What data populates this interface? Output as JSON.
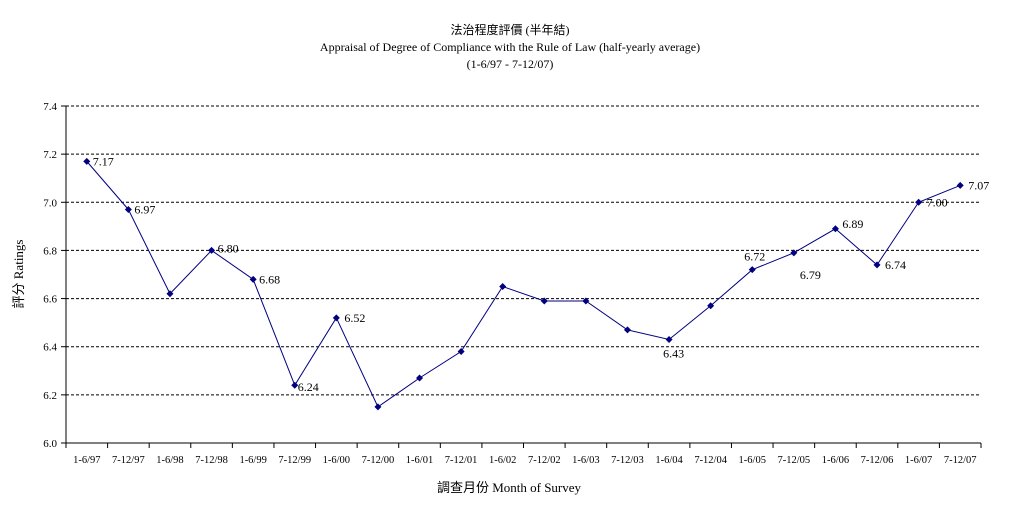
{
  "chart_data": {
    "type": "line",
    "title": "法治程度評價 (半年結)",
    "subtitle": "Appraisal of Degree of Compliance with the Rule of Law (half-yearly average)",
    "period": "(1-6/97 - 7-12/07)",
    "xlabel": "調查月份 Month of Survey",
    "ylabel": "評分 Ratings",
    "ylim": [
      6.0,
      7.4
    ],
    "yticks": [
      "6.0",
      "6.2",
      "6.4",
      "6.6",
      "6.8",
      "7.0",
      "7.2",
      "7.4"
    ],
    "grid": true,
    "line_color": "#000080",
    "categories": [
      "1-6/97",
      "7-12/97",
      "1-6/98",
      "7-12/98",
      "1-6/99",
      "7-12/99",
      "1-6/00",
      "7-12/00",
      "1-6/01",
      "7-12/01",
      "1-6/02",
      "7-12/02",
      "1-6/03",
      "7-12/03",
      "1-6/04",
      "7-12/04",
      "1-6/05",
      "7-12/05",
      "1-6/06",
      "7-12/06",
      "1-6/07",
      "7-12/07"
    ],
    "series": [
      {
        "values": [
          7.17,
          6.97,
          6.62,
          6.8,
          6.68,
          6.24,
          6.52,
          6.15,
          6.27,
          6.38,
          6.65,
          6.59,
          6.59,
          6.47,
          6.43,
          6.57,
          6.72,
          6.79,
          6.89,
          6.74,
          7.0,
          7.07
        ]
      }
    ],
    "data_labels": [
      {
        "index": 0,
        "text": "7.17"
      },
      {
        "index": 1,
        "text": "6.97"
      },
      {
        "index": 3,
        "text": "6.80"
      },
      {
        "index": 4,
        "text": "6.68"
      },
      {
        "index": 5,
        "text": "6.24"
      },
      {
        "index": 6,
        "text": "6.52"
      },
      {
        "index": 14,
        "text": "6.43"
      },
      {
        "index": 16,
        "text": "6.72"
      },
      {
        "index": 17,
        "text": "6.79"
      },
      {
        "index": 18,
        "text": "6.89"
      },
      {
        "index": 19,
        "text": "6.74"
      },
      {
        "index": 20,
        "text": "7.00"
      },
      {
        "index": 21,
        "text": "7.07"
      }
    ]
  }
}
